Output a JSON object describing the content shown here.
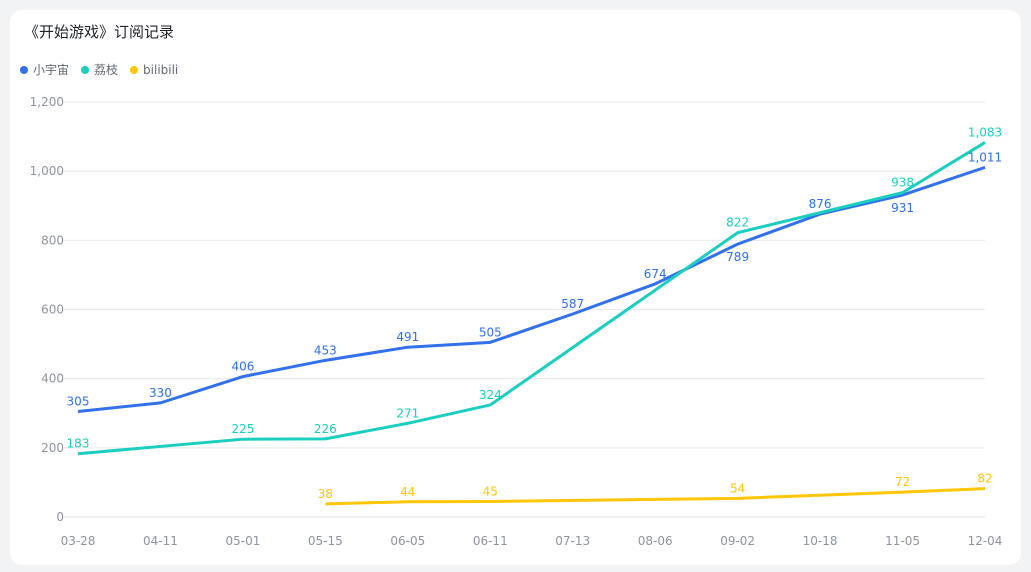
{
  "chart_data": {
    "type": "line",
    "title": "《开始游戏》订阅记录",
    "xlabel": "",
    "ylabel": "",
    "ylim": [
      0,
      1200
    ],
    "yticks": [
      0,
      200,
      400,
      600,
      800,
      1000,
      1200
    ],
    "ytick_labels": [
      "0",
      "200",
      "400",
      "600",
      "800",
      "1,000",
      "1,200"
    ],
    "grid": true,
    "legend_placement": "top-left",
    "x": [
      "03-28",
      "04-11",
      "05-01",
      "05-15",
      "06-05",
      "06-11",
      "07-13",
      "08-06",
      "09-02",
      "10-18",
      "11-05",
      "12-04"
    ],
    "series": [
      {
        "name": "小宇宙",
        "color": "#3370eb",
        "values": [
          305,
          330,
          406,
          453,
          491,
          505,
          587,
          674,
          789,
          876,
          931,
          1011
        ]
      },
      {
        "name": "荔枝",
        "color": "#1bcebf",
        "values": [
          183,
          null,
          225,
          226,
          271,
          324,
          null,
          null,
          822,
          null,
          938,
          1083
        ]
      },
      {
        "name": "bilibili",
        "color": "#ffc60a",
        "values": [
          null,
          null,
          null,
          38,
          44,
          45,
          null,
          null,
          54,
          null,
          72,
          82
        ]
      }
    ]
  }
}
